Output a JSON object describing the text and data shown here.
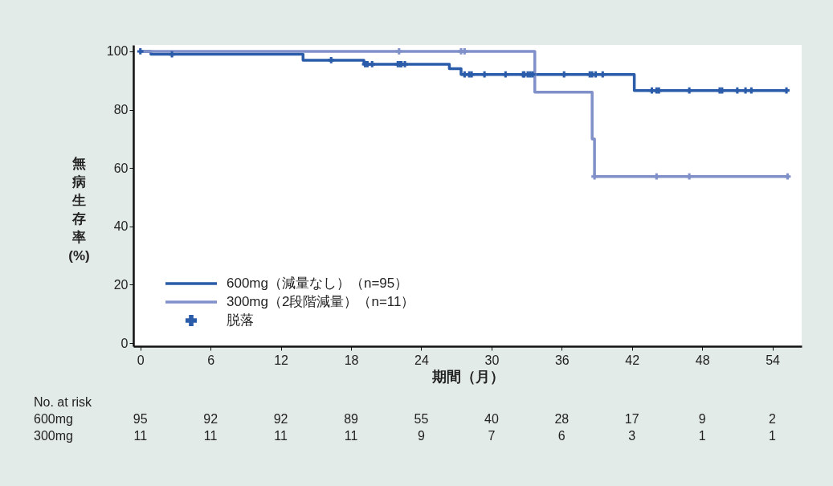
{
  "chart_data": {
    "type": "line",
    "xlabel": "期間（月）",
    "ylabel": "無病生存率(%)",
    "xlim": [
      -0.6,
      56.5
    ],
    "ylim": [
      -1.1,
      102.2
    ],
    "xticks": [
      0,
      6,
      12,
      18,
      24,
      30,
      36,
      42,
      48,
      54
    ],
    "yticks": [
      0,
      20,
      40,
      60,
      80,
      100
    ],
    "grid": false,
    "legend": "bottom left",
    "line_style": "solid",
    "series": [
      {
        "name": "600mg（減量なし）（n=95）",
        "color": "#2a5caa",
        "x": [
          0,
          0.9,
          0.9,
          13.9,
          13.9,
          19.1,
          19.1,
          26.4,
          26.4,
          27.4,
          27.4,
          42.2,
          42.2,
          55.2
        ],
        "values": [
          100,
          100,
          99,
          99,
          97,
          97,
          95.6,
          95.6,
          94.1,
          94.1,
          92.1,
          92.1,
          86.6,
          86.6
        ]
      },
      {
        "name": "300mg（2段階減量）（n=11）",
        "color": "#8090c8",
        "x": [
          0,
          33.7,
          33.7,
          38.6,
          38.6,
          38.8,
          38.8,
          55.3
        ],
        "values": [
          100,
          100,
          86,
          86,
          70,
          70,
          57.1,
          57.1
        ]
      },
      {
        "name": "脱落",
        "type": "scatter",
        "marker": "cross",
        "color": "#2a5caa",
        "x": [
          0,
          2.7,
          16.3,
          19.2,
          19.4,
          19.8,
          22.0,
          22.2,
          22.3,
          22.6,
          27.7,
          28.1,
          28.3,
          29.4,
          31.2,
          32.7,
          32.8,
          33.1,
          33.3,
          33.5,
          36.2,
          38.4,
          38.6,
          38.9,
          39.5,
          43.7,
          44.1,
          44.3,
          46.9,
          49.5,
          49.7,
          51.0,
          51.7,
          52.2,
          55.2,
          22.1,
          27.4,
          27.7,
          38.8,
          44.1,
          46.9,
          55.3
        ],
        "values": [
          100,
          99,
          97,
          95.6,
          95.6,
          95.6,
          95.6,
          95.6,
          95.6,
          95.6,
          92.1,
          92.1,
          92.1,
          92.1,
          92.1,
          92.1,
          92.1,
          92.1,
          92.1,
          92.1,
          92.1,
          92.1,
          92.1,
          92.1,
          92.1,
          86.6,
          86.6,
          86.6,
          86.6,
          86.6,
          86.6,
          86.6,
          86.6,
          86.6,
          86.6,
          100,
          100,
          100,
          57.1,
          57.1,
          57.1,
          57.1
        ],
        "colors": [
          "#2a5caa",
          "#2a5caa",
          "#2a5caa",
          "#2a5caa",
          "#2a5caa",
          "#2a5caa",
          "#2a5caa",
          "#2a5caa",
          "#2a5caa",
          "#2a5caa",
          "#2a5caa",
          "#2a5caa",
          "#2a5caa",
          "#2a5caa",
          "#2a5caa",
          "#2a5caa",
          "#2a5caa",
          "#2a5caa",
          "#2a5caa",
          "#2a5caa",
          "#2a5caa",
          "#2a5caa",
          "#2a5caa",
          "#2a5caa",
          "#2a5caa",
          "#2a5caa",
          "#2a5caa",
          "#2a5caa",
          "#2a5caa",
          "#2a5caa",
          "#2a5caa",
          "#2a5caa",
          "#2a5caa",
          "#2a5caa",
          "#2a5caa",
          "#8090c8",
          "#8090c8",
          "#8090c8",
          "#8090c8",
          "#8090c8",
          "#8090c8",
          "#8090c8"
        ]
      }
    ],
    "annotations": [
      "No. at risk",
      "600mg",
      "95",
      "92",
      "92",
      "89",
      "55",
      "40",
      "28",
      "17",
      "9",
      "2",
      "300mg",
      "11",
      "11",
      "11",
      "11",
      "9",
      "7",
      "6",
      "3",
      "1",
      "1"
    ]
  }
}
